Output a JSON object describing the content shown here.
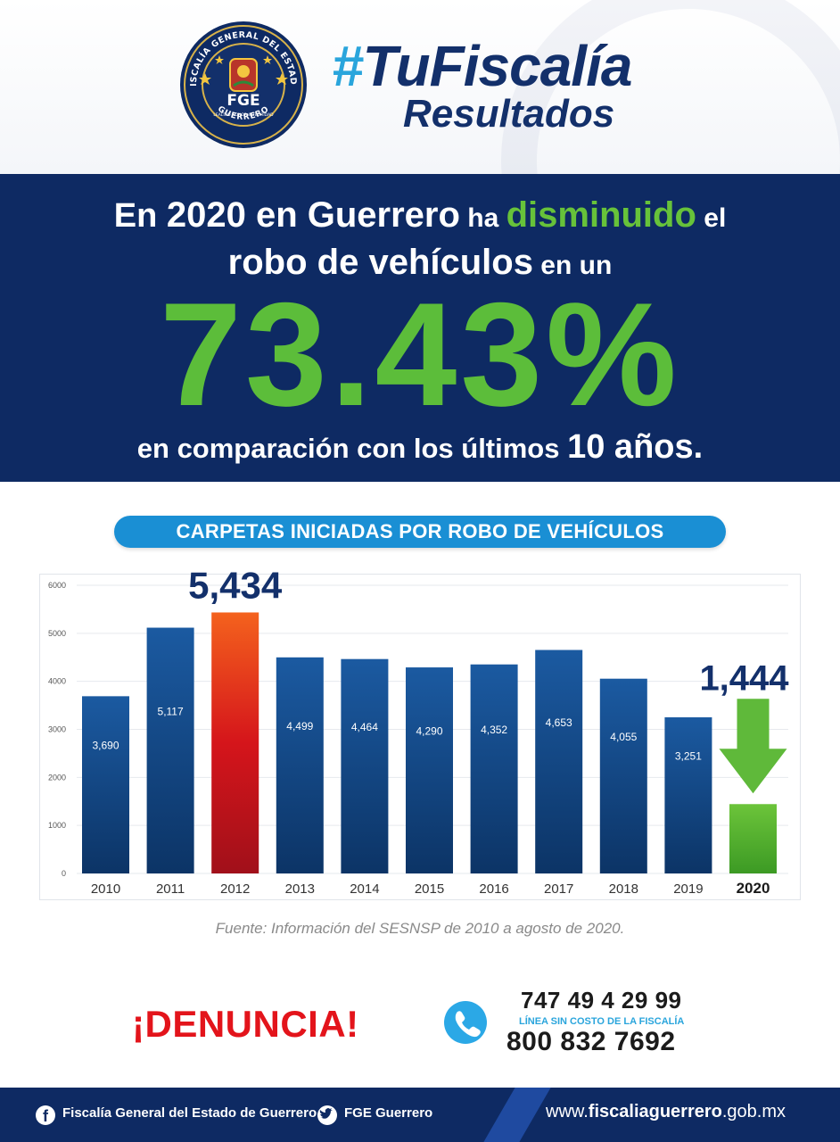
{
  "header": {
    "seal_text": {
      "ring_top": "FISCALÍA GENERAL DEL ESTADO",
      "ring_bottom": "GUERRERO",
      "center": "FGE",
      "motto": "LEALTAD HONOR INTEGRIDAD"
    },
    "title_hash": "#",
    "title_rest": "TuFiscalía",
    "subtitle": "Resultados"
  },
  "headline": {
    "l1_a": "En ",
    "l1_b": "2020 en Guerrero",
    "l1_c": " ha ",
    "l1_d": "disminuido",
    "l1_e": " el",
    "l2_a": "robo de vehículos",
    "l2_b": " en un",
    "percent": "73.43%",
    "l3_a": "en comparación con los últimos ",
    "l3_b": "10 años",
    "l3_c": "."
  },
  "chart_title": "CARPETAS INICIADAS POR ROBO DE VEHÍCULOS",
  "chart_data": {
    "type": "bar",
    "title": "CARPETAS INICIADAS POR ROBO DE VEHÍCULOS",
    "xlabel": "",
    "ylabel": "",
    "ylim": [
      0,
      6000
    ],
    "yticks": [
      0,
      1000,
      2000,
      3000,
      4000,
      5000,
      6000
    ],
    "grid": true,
    "categories": [
      "2010",
      "2011",
      "2012",
      "2013",
      "2014",
      "2015",
      "2016",
      "2017",
      "2018",
      "2019",
      "2020"
    ],
    "values": [
      3690,
      5117,
      5434,
      4499,
      4464,
      4290,
      4352,
      4653,
      4055,
      3251,
      1444
    ],
    "data_labels": [
      "3,690",
      "5,117",
      "5,434",
      "4,499",
      "4,464",
      "4,290",
      "4,352",
      "4,653",
      "4,055",
      "3,251",
      "1,444"
    ],
    "highlight": {
      "max": {
        "category": "2012",
        "label": "5,434",
        "color": "#e0201f"
      },
      "current": {
        "category": "2020",
        "label": "1,444",
        "color": "#4fae2a",
        "arrow": "down"
      }
    },
    "bar_color": "#17508f"
  },
  "source": "Fuente: Información del SESNSP de 2010 a agosto de 2020.",
  "contact": {
    "denuncia": "¡DENUNCIA!",
    "phone1": "747 49 4 29 99",
    "note": "LÍNEA SIN COSTO DE LA FISCALÍA",
    "phone2": "800 832 7692"
  },
  "footer": {
    "facebook": "Fiscalía General del Estado de Guerrero",
    "twitter": "FGE Guerrero",
    "web_prefix": "www.",
    "web_bold": "fiscaliaguerrero",
    "web_suffix": ".gob.mx"
  },
  "colors": {
    "navy": "#0e2a63",
    "accent_blue": "#2aa5dc",
    "green": "#5cbd3a",
    "red": "#e3141b"
  }
}
